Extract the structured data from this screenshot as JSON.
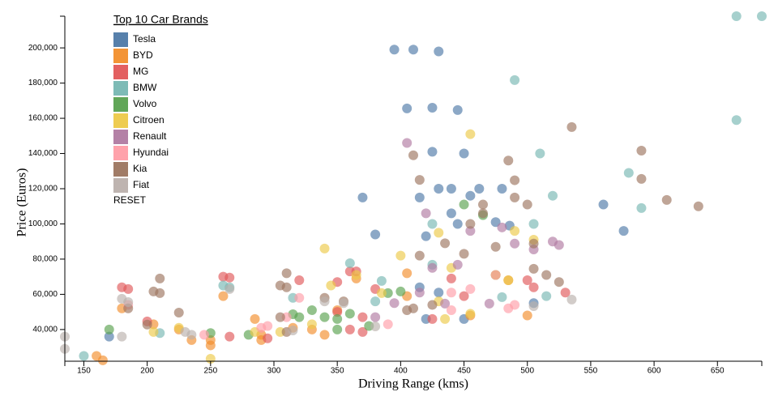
{
  "chart_data": {
    "type": "scatter",
    "title": "Top 10 Car Brands",
    "reset_label": "RESET",
    "x_label": "Driving Range (kms)",
    "y_label": "Price (Euros)",
    "xlim": [
      135,
      685
    ],
    "ylim": [
      22000,
      218000
    ],
    "xticks": [
      150,
      200,
      250,
      300,
      350,
      400,
      450,
      500,
      550,
      600,
      650
    ],
    "yticks": [
      {
        "value": 40000,
        "label": "40,000"
      },
      {
        "value": 60000,
        "label": "60,000"
      },
      {
        "value": 80000,
        "label": "80,000"
      },
      {
        "value": 100000,
        "label": "100,000"
      },
      {
        "value": 120000,
        "label": "120,000"
      },
      {
        "value": 140000,
        "label": "140,000"
      },
      {
        "value": 160000,
        "label": "160,000"
      },
      {
        "value": 180000,
        "label": "180,000"
      },
      {
        "value": 200000,
        "label": "200,000"
      }
    ],
    "grid": false,
    "series": [
      {
        "name": "Tesla",
        "color": "#4e79a7",
        "x": [
          395,
          410,
          430,
          405,
          425,
          445,
          425,
          450,
          430,
          440,
          462,
          480,
          415,
          455,
          370,
          560,
          440,
          445,
          475,
          486,
          576,
          420,
          380,
          415,
          505,
          420,
          450,
          170,
          430
        ],
        "values": [
          199000,
          199000,
          198000,
          165600,
          166000,
          164700,
          141000,
          140000,
          120000,
          120000,
          120000,
          120000,
          115000,
          116000,
          115000,
          111000,
          106000,
          100000,
          101000,
          99000,
          96000,
          93000,
          94000,
          64000,
          55000,
          46000,
          46000,
          36000,
          61000
        ]
      },
      {
        "name": "BYD",
        "color": "#f28e2b",
        "x": [
          160,
          165,
          180,
          205,
          225,
          235,
          250,
          250,
          260,
          285,
          290,
          315,
          330,
          340,
          350,
          365,
          405,
          405,
          485,
          500,
          455,
          290
        ],
        "values": [
          25000,
          22500,
          52000,
          43000,
          40000,
          34000,
          31000,
          34000,
          59000,
          46000,
          37000,
          41000,
          40000,
          37000,
          51000,
          69000,
          59000,
          72000,
          68000,
          48000,
          48000,
          34000
        ]
      },
      {
        "name": "MG",
        "color": "#e15759",
        "x": [
          180,
          185,
          200,
          260,
          265,
          265,
          320,
          295,
          350,
          360,
          365,
          380,
          350,
          370,
          370,
          425,
          440,
          450,
          500,
          505,
          530,
          360
        ],
        "values": [
          64000,
          63000,
          44600,
          70000,
          69500,
          36000,
          68000,
          35000,
          67000,
          73000,
          73000,
          63000,
          50000,
          47000,
          38600,
          46000,
          69000,
          59000,
          68000,
          64000,
          61000,
          40000
        ]
      },
      {
        "name": "BMW",
        "color": "#76b7b2",
        "x": [
          665,
          685,
          490,
          665,
          510,
          580,
          590,
          520,
          505,
          425,
          360,
          385,
          315,
          260,
          265,
          210,
          150,
          515,
          425,
          480,
          380
        ],
        "values": [
          218000,
          218000,
          181700,
          159000,
          140000,
          129000,
          109000,
          116000,
          100000,
          100000,
          77700,
          67600,
          58000,
          65000,
          64000,
          38000,
          25000,
          59000,
          76800,
          58400,
          56000
        ]
      },
      {
        "name": "Volvo",
        "color": "#59a14f",
        "x": [
          170,
          250,
          280,
          330,
          315,
          320,
          350,
          360,
          375,
          390,
          400,
          450,
          465,
          475,
          350,
          340
        ],
        "values": [
          40000,
          38000,
          37000,
          51000,
          48700,
          47000,
          46000,
          49000,
          42000,
          60700,
          61600,
          111000,
          105000,
          71000,
          40000,
          47000
        ]
      },
      {
        "name": "Citroen",
        "color": "#edc948",
        "x": [
          250,
          340,
          345,
          400,
          455,
          430,
          490,
          505,
          440,
          485,
          475,
          455,
          435,
          225,
          205,
          305,
          285,
          385,
          330,
          365,
          430
        ],
        "values": [
          23400,
          86000,
          65000,
          82000,
          151000,
          95000,
          96000,
          91000,
          75000,
          68000,
          71000,
          49000,
          46000,
          41000,
          38600,
          38600,
          38600,
          60700,
          43000,
          71000,
          56000
        ]
      },
      {
        "name": "Renault",
        "color": "#b07aa1",
        "x": [
          405,
          420,
          455,
          490,
          505,
          520,
          525,
          480,
          445,
          470,
          425,
          415,
          435,
          395,
          380
        ],
        "values": [
          146000,
          106000,
          96000,
          88800,
          85500,
          90000,
          88000,
          98000,
          76800,
          54700,
          75000,
          61000,
          54700,
          55000,
          47000
        ]
      },
      {
        "name": "Hyundai",
        "color": "#ff9da7",
        "x": [
          185,
          245,
          290,
          320,
          390,
          440,
          455,
          485,
          490,
          440,
          475,
          295,
          310
        ],
        "values": [
          54000,
          37000,
          41000,
          58000,
          43000,
          61000,
          63000,
          52000,
          54000,
          51000,
          71000,
          42000,
          47000
        ]
      },
      {
        "name": "Kia",
        "color": "#9c755f",
        "x": [
          535,
          590,
          590,
          610,
          635,
          485,
          490,
          415,
          410,
          490,
          500,
          465,
          465,
          455,
          435,
          450,
          475,
          505,
          505,
          515,
          525,
          415,
          310,
          305,
          310,
          210,
          205,
          210,
          225,
          200,
          185,
          340,
          355,
          405,
          410,
          425,
          310,
          305
        ],
        "values": [
          155000,
          141600,
          125600,
          113600,
          110000,
          136000,
          124800,
          125000,
          139000,
          115000,
          111000,
          111000,
          106000,
          100000,
          89000,
          83000,
          87000,
          88800,
          74500,
          71000,
          67000,
          82000,
          72000,
          65000,
          64000,
          69000,
          61600,
          60700,
          49600,
          42800,
          52000,
          58000,
          56000,
          51000,
          52000,
          54000,
          38600,
          47000
        ]
      },
      {
        "name": "Fiat",
        "color": "#bab0ac",
        "x": [
          135,
          135,
          180,
          185,
          180,
          230,
          235,
          265,
          315,
          380,
          535,
          505,
          355,
          340
        ],
        "values": [
          36000,
          29000,
          57500,
          55600,
          36000,
          38600,
          37000,
          63000,
          39500,
          41800,
          57000,
          53300,
          55000,
          56000
        ]
      }
    ]
  }
}
